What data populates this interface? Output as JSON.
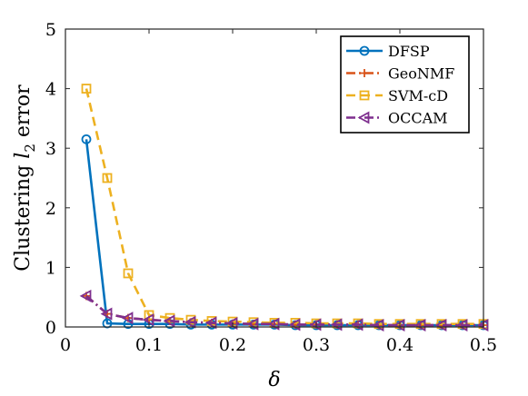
{
  "chart_data": {
    "type": "line",
    "title": "",
    "xlabel": "δ",
    "ylabel_parts": [
      "Clustering ",
      "l",
      "2",
      " error"
    ],
    "xlim": [
      0,
      0.5
    ],
    "ylim": [
      0,
      5
    ],
    "xticks": [
      0,
      0.1,
      0.2,
      0.3,
      0.4,
      0.5
    ],
    "xtick_labels": [
      "0",
      "0.1",
      "0.2",
      "0.3",
      "0.4",
      "0.5"
    ],
    "yticks": [
      0,
      1,
      2,
      3,
      4,
      5
    ],
    "ytick_labels": [
      "0",
      "1",
      "2",
      "3",
      "4",
      "5"
    ],
    "grid": false,
    "legend_position": "top-right",
    "x": [
      0.025,
      0.05,
      0.075,
      0.1,
      0.125,
      0.15,
      0.175,
      0.2,
      0.225,
      0.25,
      0.275,
      0.3,
      0.325,
      0.35,
      0.375,
      0.4,
      0.425,
      0.45,
      0.475,
      0.5
    ],
    "series": [
      {
        "name": "DFSP",
        "color": "#0072BD",
        "dash": "solid",
        "marker": "circle",
        "values": [
          3.15,
          0.06,
          0.05,
          0.05,
          0.05,
          0.04,
          0.04,
          0.04,
          0.04,
          0.04,
          0.03,
          0.03,
          0.03,
          0.03,
          0.03,
          0.03,
          0.03,
          0.03,
          0.03,
          0.03
        ]
      },
      {
        "name": "GeoNMF",
        "color": "#D95319",
        "dash": "dashdot",
        "marker": "plus",
        "values": [
          0.52,
          0.22,
          0.15,
          0.12,
          0.1,
          0.08,
          0.07,
          0.06,
          0.05,
          0.05,
          0.04,
          0.04,
          0.04,
          0.04,
          0.03,
          0.03,
          0.03,
          0.03,
          0.03,
          0.03
        ]
      },
      {
        "name": "SVM-cD",
        "color": "#EDB120",
        "dash": "dashed",
        "marker": "square",
        "values": [
          4.0,
          2.5,
          0.9,
          0.2,
          0.15,
          0.12,
          0.1,
          0.09,
          0.08,
          0.07,
          0.07,
          0.06,
          0.06,
          0.06,
          0.05,
          0.05,
          0.05,
          0.05,
          0.05,
          0.05
        ]
      },
      {
        "name": "OCCAM",
        "color": "#7E2F8E",
        "dash": "dashdot",
        "marker": "triangle-left",
        "values": [
          0.52,
          0.22,
          0.15,
          0.12,
          0.1,
          0.08,
          0.07,
          0.06,
          0.05,
          0.05,
          0.04,
          0.04,
          0.04,
          0.04,
          0.03,
          0.03,
          0.03,
          0.03,
          0.03,
          0.03
        ]
      }
    ]
  }
}
